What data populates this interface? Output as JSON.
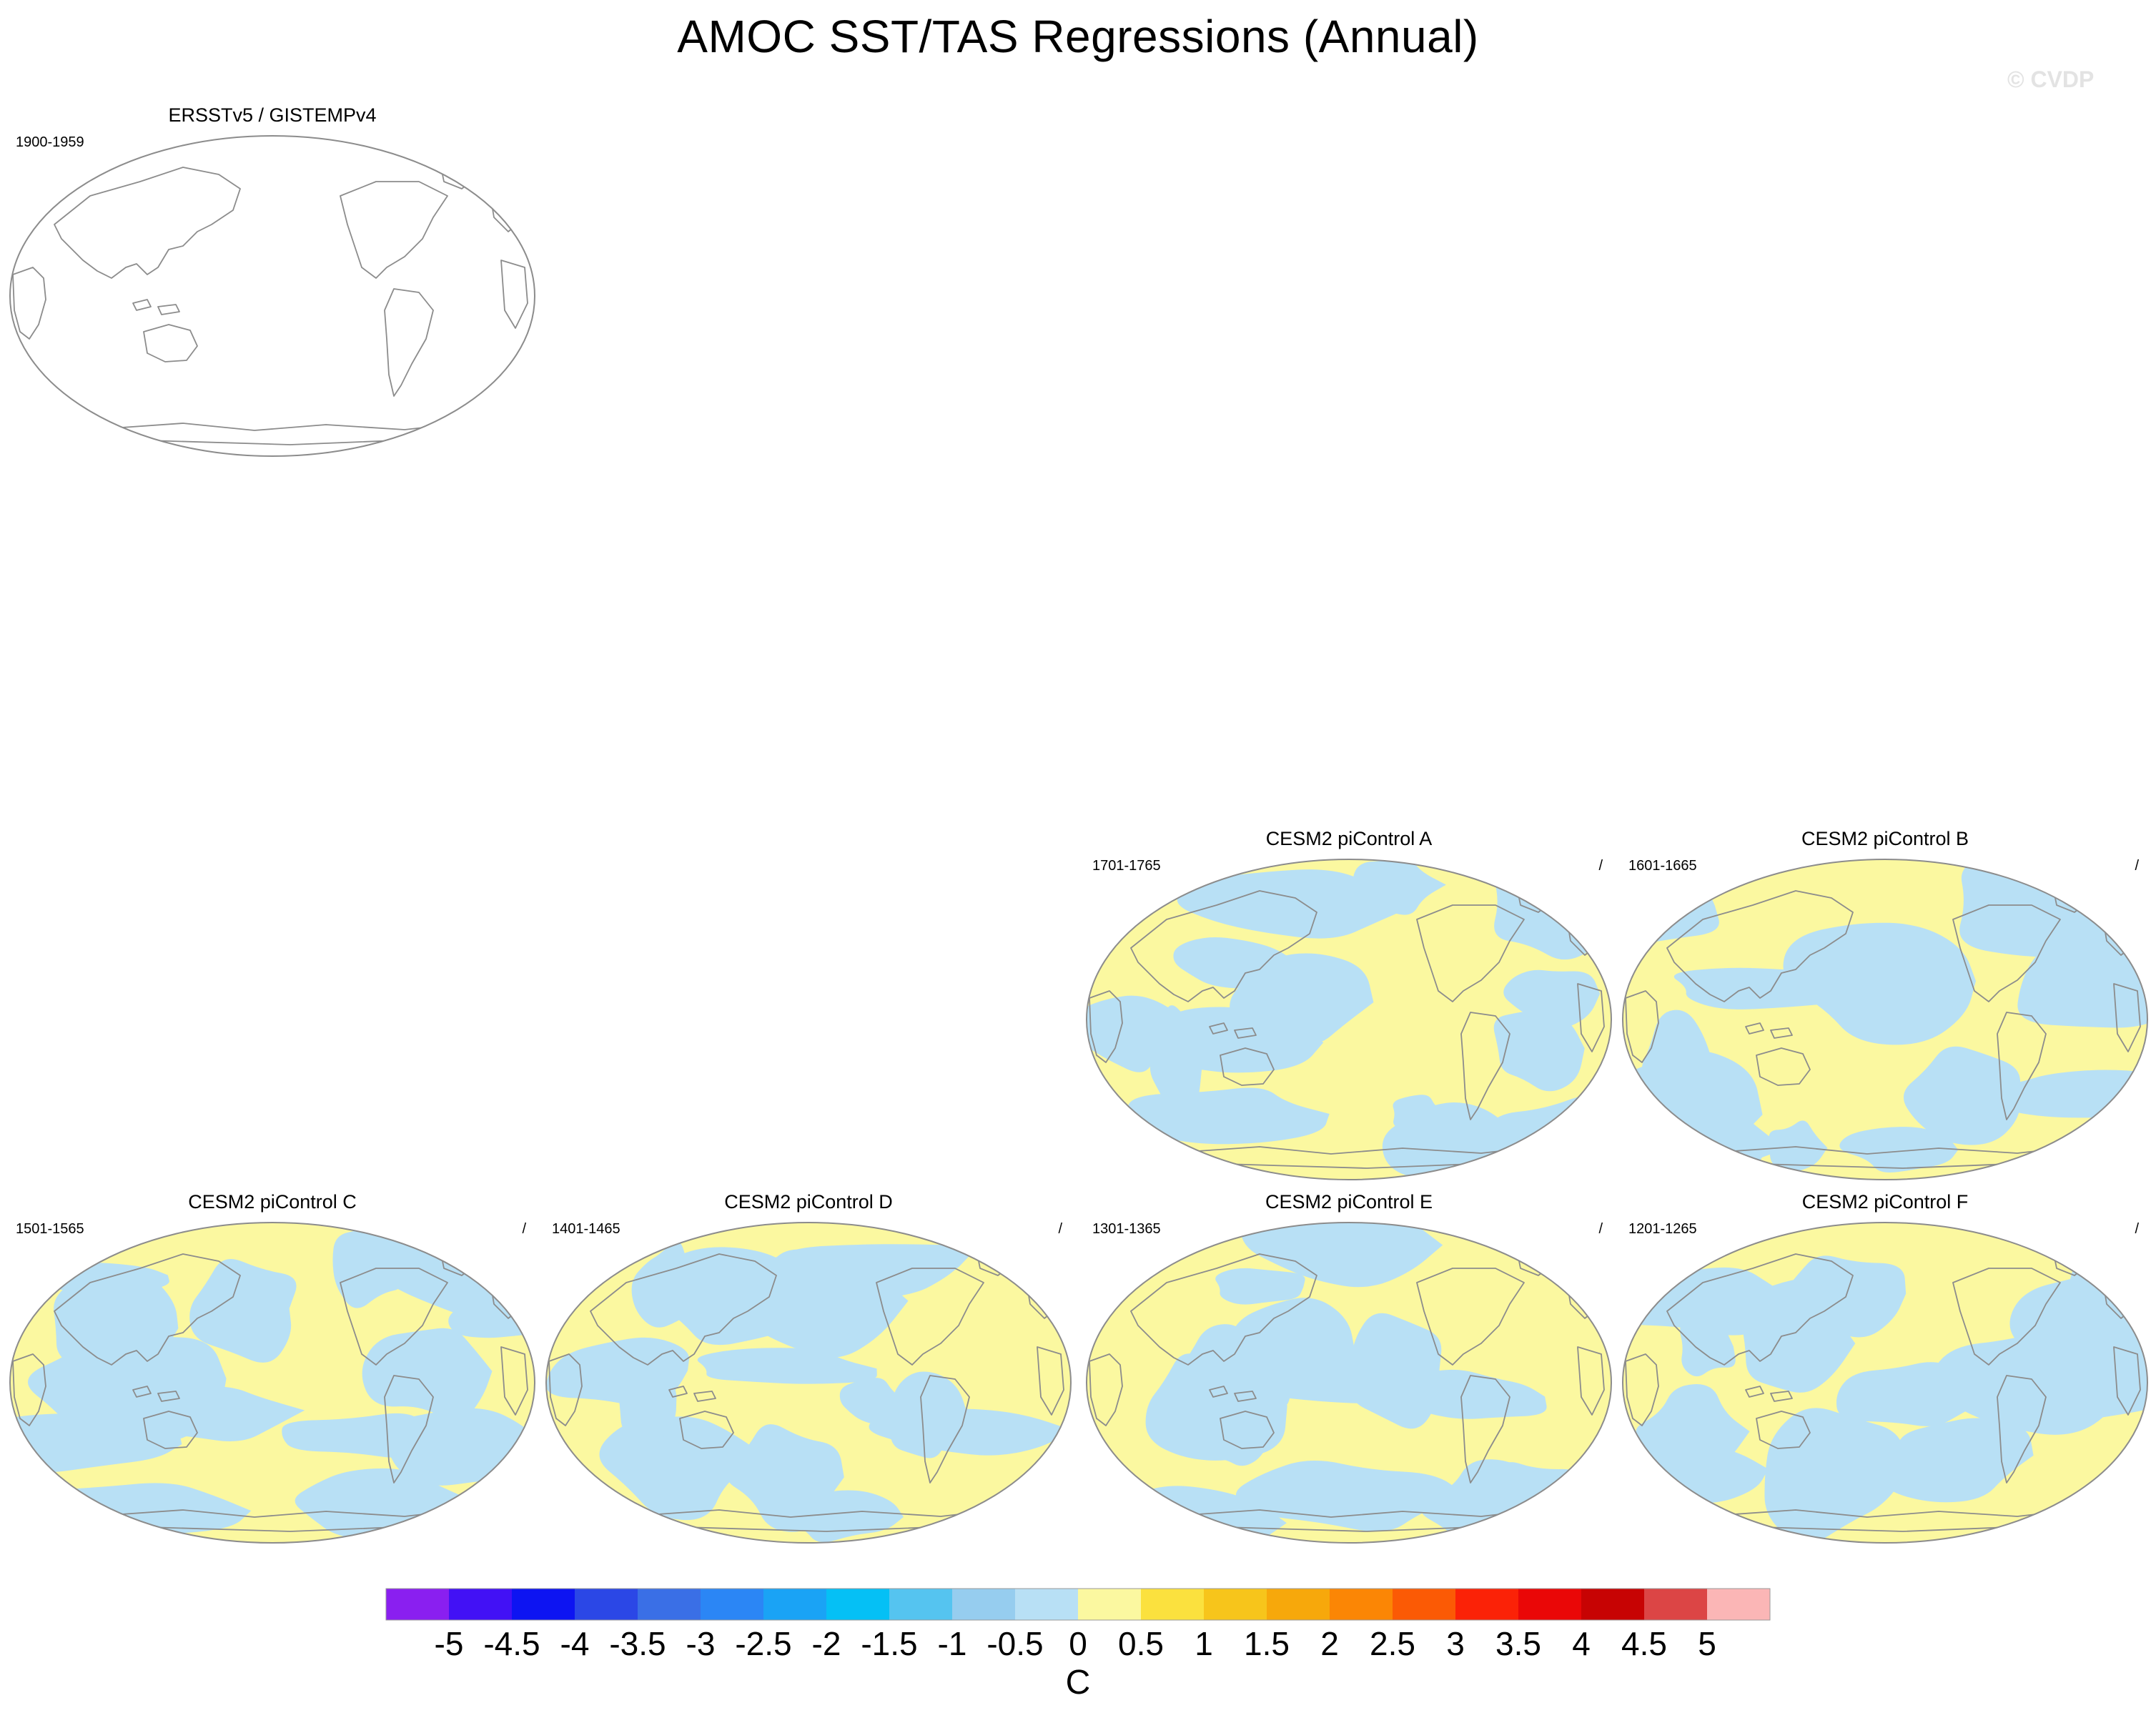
{
  "title": "AMOC SST/TAS Regressions (Annual)",
  "watermark": "© CVDP",
  "panels": [
    {
      "id": "obs",
      "title": "ERSSTv5 / GISTEMPv4",
      "period": "1900-1959",
      "slash": "",
      "filled": false
    },
    {
      "id": "A",
      "title": "CESM2 piControl A",
      "period": "1701-1765",
      "slash": "/",
      "filled": true
    },
    {
      "id": "B",
      "title": "CESM2 piControl B",
      "period": "1601-1665",
      "slash": "/",
      "filled": true
    },
    {
      "id": "C",
      "title": "CESM2 piControl C",
      "period": "1501-1565",
      "slash": "/",
      "filled": true
    },
    {
      "id": "D",
      "title": "CESM2 piControl D",
      "period": "1401-1465",
      "slash": "/",
      "filled": true
    },
    {
      "id": "E",
      "title": "CESM2 piControl E",
      "period": "1301-1365",
      "slash": "/",
      "filled": true
    },
    {
      "id": "F",
      "title": "CESM2 piControl F",
      "period": "1201-1265",
      "slash": "/",
      "filled": true
    }
  ],
  "colorbar": {
    "labels": [
      "-5",
      "-4.5",
      "-4",
      "-3.5",
      "-3",
      "-2.5",
      "-2",
      "-1.5",
      "-1",
      "-0.5",
      "0",
      "0.5",
      "1",
      "1.5",
      "2",
      "2.5",
      "3",
      "3.5",
      "4",
      "4.5",
      "5"
    ],
    "colors": [
      "#8a1ff0",
      "#4211f5",
      "#0d14f2",
      "#2b47e6",
      "#3a6fe6",
      "#2b86f5",
      "#1aa3f5",
      "#05c0f5",
      "#55c4f0",
      "#96cdef",
      "#b8e0f5",
      "#fbf8a0",
      "#fbe13e",
      "#f7c51b",
      "#f7a80b",
      "#fb8605",
      "#fb5a05",
      "#fb2207",
      "#ea0707",
      "#c70303",
      "#dc4545",
      "#fbb6b6"
    ],
    "unit": "C"
  },
  "colors": {
    "positive_fill": "#fbf8a0",
    "negative_fill": "#b8e0f5",
    "coastline": "#8c8c8c",
    "frame": "#8c8c8c"
  }
}
